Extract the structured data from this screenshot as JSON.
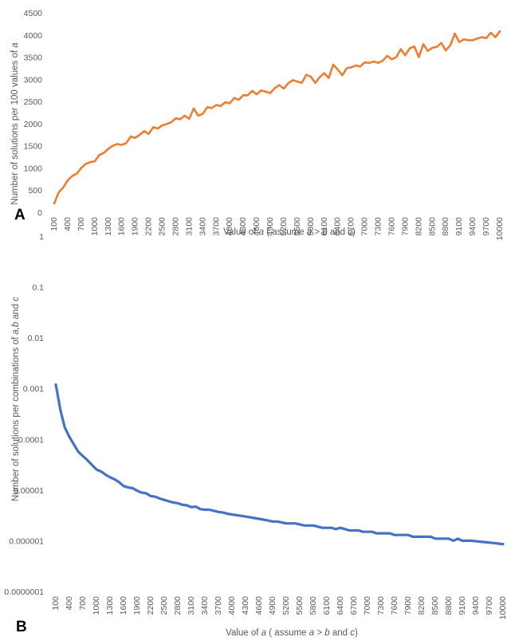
{
  "figure": {
    "panels": [
      {
        "label": "A",
        "ylabel_parts": [
          "Number of solutions per 100 values of ",
          "a"
        ],
        "xlabel_parts": [
          "Value of ",
          "a",
          " ( assume ",
          "a",
          " > ",
          "b",
          " and ",
          "c",
          ")"
        ],
        "y_tick_labels": [
          "0",
          "500",
          "1000",
          "1500",
          "2000",
          "2500",
          "3000",
          "3500",
          "4000",
          "4500"
        ]
      },
      {
        "label": "B",
        "ylabel_parts": [
          "Number of solutions per combinations of ",
          "a,b",
          " and ",
          "c"
        ],
        "xlabel_parts": [
          "Value of ",
          "a",
          " ( assume ",
          "a",
          " > ",
          "b",
          " and ",
          "c",
          ")"
        ],
        "y_tick_labels": [
          "0.0000001",
          "0.000001",
          "0.00001",
          "0.0001",
          "0.001",
          "0.01",
          "0.1",
          "1"
        ]
      }
    ]
  },
  "chart_data": [
    {
      "type": "line",
      "panel": "A",
      "xlabel": "Value of a ( assume a > b and c)",
      "ylabel": "Number of solutions per 100 values of a",
      "ylim": [
        0,
        4500
      ],
      "yscale": "linear",
      "grid": false,
      "legend": "none",
      "color": "#ED7D31",
      "x_tick_labels": [
        "100",
        "400",
        "700",
        "1000",
        "1300",
        "1600",
        "1900",
        "2200",
        "2500",
        "2800",
        "3100",
        "3400",
        "3700",
        "4000",
        "4300",
        "4600",
        "4900",
        "5200",
        "5500",
        "5800",
        "6100",
        "6400",
        "6700",
        "7000",
        "7300",
        "7600",
        "7900",
        "8200",
        "8500",
        "8800",
        "9100",
        "9400",
        "9700",
        "10000"
      ],
      "x": [
        100,
        200,
        300,
        400,
        500,
        600,
        700,
        800,
        900,
        1000,
        1100,
        1200,
        1300,
        1400,
        1500,
        1600,
        1700,
        1800,
        1900,
        2000,
        2100,
        2200,
        2300,
        2400,
        2500,
        2600,
        2700,
        2800,
        2900,
        3000,
        3100,
        3200,
        3300,
        3400,
        3500,
        3600,
        3700,
        3800,
        3900,
        4000,
        4100,
        4200,
        4300,
        4400,
        4500,
        4600,
        4700,
        4800,
        4900,
        5000,
        5100,
        5200,
        5300,
        5400,
        5500,
        5600,
        5700,
        5800,
        5900,
        6000,
        6100,
        6200,
        6300,
        6400,
        6500,
        6600,
        6700,
        6800,
        6900,
        7000,
        7100,
        7200,
        7300,
        7400,
        7500,
        7600,
        7700,
        7800,
        7900,
        8000,
        8100,
        8200,
        8300,
        8400,
        8500,
        8600,
        8700,
        8800,
        8900,
        9000,
        9100,
        9200,
        9300,
        9400,
        9500,
        9600,
        9700,
        9800,
        9900,
        10000
      ],
      "values": [
        200,
        450,
        560,
        720,
        820,
        870,
        1000,
        1090,
        1130,
        1150,
        1290,
        1340,
        1430,
        1500,
        1540,
        1520,
        1560,
        1710,
        1680,
        1750,
        1830,
        1770,
        1920,
        1890,
        1960,
        1990,
        2030,
        2120,
        2100,
        2180,
        2110,
        2340,
        2180,
        2220,
        2370,
        2350,
        2420,
        2400,
        2480,
        2460,
        2580,
        2540,
        2640,
        2640,
        2740,
        2660,
        2750,
        2720,
        2690,
        2800,
        2870,
        2790,
        2910,
        2980,
        2950,
        2920,
        3100,
        3060,
        2920,
        3050,
        3140,
        3030,
        3330,
        3220,
        3090,
        3250,
        3270,
        3310,
        3290,
        3380,
        3370,
        3400,
        3370,
        3420,
        3530,
        3450,
        3500,
        3680,
        3540,
        3700,
        3740,
        3500,
        3790,
        3640,
        3710,
        3730,
        3820,
        3650,
        3770,
        4030,
        3840,
        3900,
        3880,
        3880,
        3920,
        3950,
        3930,
        4050,
        3950,
        4080
      ]
    },
    {
      "type": "line",
      "panel": "B",
      "xlabel": "Value of a ( assume a > b and c)",
      "ylabel": "Number of solutions per combinations of a,b and c",
      "ylim": [
        1e-07,
        1
      ],
      "yscale": "log",
      "grid": false,
      "legend": "none",
      "color": "#4472C4",
      "x_tick_labels": [
        "100",
        "400",
        "700",
        "1000",
        "1300",
        "1600",
        "1900",
        "2200",
        "2500",
        "2800",
        "3100",
        "3400",
        "3700",
        "4000",
        "4300",
        "4600",
        "4900",
        "5200",
        "5500",
        "5800",
        "6100",
        "6400",
        "6700",
        "7000",
        "7300",
        "7600",
        "7900",
        "8200",
        "8500",
        "8800",
        "9100",
        "9400",
        "9700",
        "10000"
      ],
      "x": [
        100,
        200,
        300,
        400,
        500,
        600,
        700,
        800,
        900,
        1000,
        1100,
        1200,
        1300,
        1400,
        1500,
        1600,
        1700,
        1800,
        1900,
        2000,
        2100,
        2200,
        2300,
        2400,
        2500,
        2600,
        2700,
        2800,
        2900,
        3000,
        3100,
        3200,
        3300,
        3400,
        3500,
        3600,
        3700,
        3800,
        3900,
        4000,
        4100,
        4200,
        4300,
        4400,
        4500,
        4600,
        4700,
        4800,
        4900,
        5000,
        5100,
        5200,
        5300,
        5400,
        5500,
        5600,
        5700,
        5800,
        5900,
        6000,
        6100,
        6200,
        6300,
        6400,
        6500,
        6600,
        6700,
        6800,
        6900,
        7000,
        7100,
        7200,
        7300,
        7400,
        7500,
        7600,
        7700,
        7800,
        7900,
        8000,
        8100,
        8200,
        8300,
        8400,
        8500,
        8600,
        8700,
        8800,
        8900,
        9000,
        9100,
        9200,
        9300,
        9400,
        9500,
        9600,
        9700,
        9800,
        9900,
        10000
      ],
      "values": [
        0.0012,
        0.00038,
        0.00017,
        0.000112,
        7.89e-05,
        5.66e-05,
        4.67e-05,
        3.87e-05,
        3.13e-05,
        2.54e-05,
        2.32e-05,
        2.01e-05,
        1.78e-05,
        1.63e-05,
        1.43e-05,
        1.2e-05,
        1.12e-05,
        1.09e-05,
        9.7e-06,
        8.9e-06,
        8.6e-06,
        7.6e-06,
        7.4e-06,
        6.8e-06,
        6.4e-06,
        6e-06,
        5.7e-06,
        5.5e-06,
        5.1e-06,
        5e-06,
        4.6e-06,
        4.7e-06,
        4.2e-06,
        4.1e-06,
        4.1e-06,
        3.9e-06,
        3.7e-06,
        3.6e-06,
        3.4e-06,
        3.3e-06,
        3.2e-06,
        3.1e-06,
        3e-06,
        2.9e-06,
        2.8e-06,
        2.7e-06,
        2.6e-06,
        2.5e-06,
        2.4e-06,
        2.4e-06,
        2.3e-06,
        2.2e-06,
        2.2e-06,
        2.2e-06,
        2.1e-06,
        2e-06,
        2e-06,
        2e-06,
        1.9e-06,
        1.8e-06,
        1.8e-06,
        1.8e-06,
        1.7e-06,
        1.8e-06,
        1.7e-06,
        1.6e-06,
        1.6e-06,
        1.6e-06,
        1.5e-06,
        1.5e-06,
        1.5e-06,
        1.4e-06,
        1.4e-06,
        1.4e-06,
        1.4e-06,
        1.3e-06,
        1.3e-06,
        1.3e-06,
        1.3e-06,
        1.2e-06,
        1.2e-06,
        1.2e-06,
        1.2e-06,
        1.2e-06,
        1.1e-06,
        1.1e-06,
        1.1e-06,
        1.1e-06,
        1e-06,
        1.1e-06,
        1e-06,
        1e-06,
        1e-06,
        9.8e-07,
        9.6e-07,
        9.4e-07,
        9.2e-07,
        9e-07,
        8.8e-07,
        8.6e-07
      ]
    }
  ]
}
